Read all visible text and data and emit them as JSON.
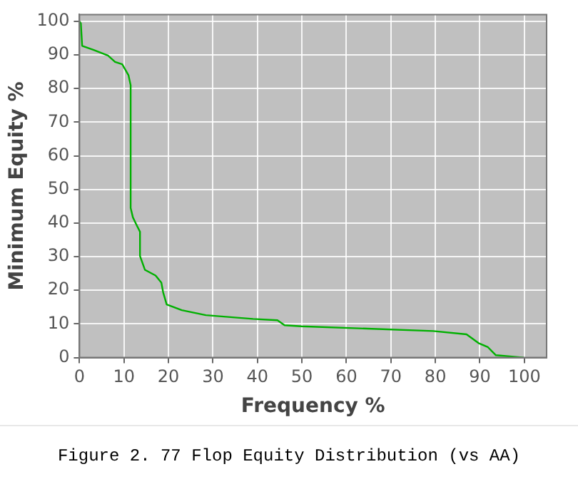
{
  "chart_data": {
    "type": "line",
    "xlabel": "Frequency %",
    "ylabel": "Minimum Equity %",
    "annotations": [
      "Figure 2. 77 Flop Equity Distribution (vs AA)"
    ],
    "xlim": [
      0,
      105
    ],
    "ylim": [
      0,
      102
    ],
    "xticks": [
      0,
      10,
      20,
      30,
      40,
      50,
      60,
      70,
      80,
      90,
      100
    ],
    "yticks": [
      0,
      10,
      20,
      30,
      40,
      50,
      60,
      70,
      80,
      90,
      100
    ],
    "grid": true,
    "legend": false,
    "marker": "none",
    "line_style": "solid",
    "series": [
      {
        "color": "#00b000",
        "x": [
          0,
          0.3,
          0.6,
          3.1,
          6.4,
          8,
          9.6,
          11,
          11.5,
          11.5,
          12,
          12.8,
          13.6,
          13.6,
          14.7,
          17.1,
          18.4,
          18.8,
          19.6,
          23,
          28.4,
          39,
          44.5,
          46.1,
          49.9,
          79.5,
          87,
          89.7,
          91.8,
          93.6,
          99.9
        ],
        "values": [
          100,
          99.4,
          92.7,
          91.5,
          89.8,
          87.9,
          87.2,
          84,
          81,
          44.5,
          41.7,
          39.5,
          37.4,
          30.2,
          26.1,
          24.4,
          22.3,
          19.4,
          15.8,
          14.1,
          12.6,
          11.5,
          11.1,
          9.6,
          9.3,
          7.9,
          6.9,
          4.3,
          3.1,
          0.7,
          0
        ]
      }
    ]
  }
}
